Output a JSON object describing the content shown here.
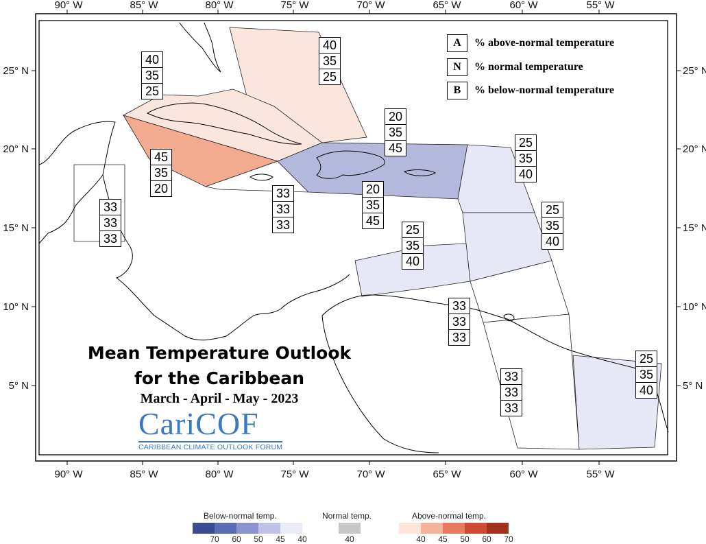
{
  "map": {
    "title_line1": "Mean Temperature Outlook",
    "title_line2": "for the Caribbean",
    "season": "March - April - May - 2023",
    "logo_word": "CariCOF",
    "logo_subtitle": "CARIBBEAN CLIMATE OUTLOOK FORUM",
    "lon_ticks": [
      "90° W",
      "85° W",
      "80° W",
      "75° W",
      "70° W",
      "65° W",
      "60° W",
      "55° W"
    ],
    "lat_ticks": [
      "25° N",
      "20° N",
      "15° N",
      "10° N",
      "5° N"
    ],
    "key": [
      {
        "letter": "A",
        "text": "% above-normal temperature"
      },
      {
        "letter": "N",
        "text": "% normal temperature"
      },
      {
        "letter": "B",
        "text": "% below-normal temperature"
      }
    ],
    "regions": [
      {
        "id": "bahamas",
        "category": "above-40",
        "values": [
          "40",
          "35",
          "25"
        ]
      },
      {
        "id": "cuba",
        "category": "above-40",
        "values": [
          "40",
          "35",
          "25"
        ]
      },
      {
        "id": "cayman",
        "category": "above-45",
        "values": [
          "45",
          "35",
          "20"
        ]
      },
      {
        "id": "jamaica",
        "category": "normal",
        "values": [
          "33",
          "33",
          "33"
        ]
      },
      {
        "id": "belize",
        "category": "normal",
        "values": [
          "33",
          "33",
          "33"
        ]
      },
      {
        "id": "hispaniola-pr",
        "category": "below-45",
        "values": [
          "20",
          "35",
          "45"
        ]
      },
      {
        "id": "hispaniola-pr-label2",
        "category": "below-45",
        "values": [
          "20",
          "35",
          "45"
        ]
      },
      {
        "id": "leeward",
        "category": "below-40",
        "values": [
          "25",
          "35",
          "40"
        ]
      },
      {
        "id": "windward",
        "category": "below-40",
        "values": [
          "25",
          "35",
          "40"
        ]
      },
      {
        "id": "abc-islands",
        "category": "below-40",
        "values": [
          "25",
          "35",
          "40"
        ]
      },
      {
        "id": "trinidad",
        "category": "normal",
        "values": [
          "33",
          "33",
          "33"
        ]
      },
      {
        "id": "guyana",
        "category": "normal",
        "values": [
          "33",
          "33",
          "33"
        ]
      },
      {
        "id": "suriname-guiana",
        "category": "below-40",
        "values": [
          "25",
          "35",
          "40"
        ]
      }
    ],
    "colors": {
      "above-40": "#fbe6dd",
      "above-45": "#f2ab8f",
      "below-45": "#b4b8dd",
      "below-40": "#e6e8f5",
      "normal": "#ffffff",
      "border": "#000000"
    }
  },
  "scale": {
    "below_title": "Below-normal temp.",
    "normal_title": "Normal temp.",
    "above_title": "Above-normal temp.",
    "below_colors": [
      "#3b4a93",
      "#5c6bb5",
      "#8d93cc",
      "#c0c3e5",
      "#e9ebf7"
    ],
    "below_values": [
      "70",
      "60",
      "50",
      "45",
      "40"
    ],
    "normal_color": "#c8c8c8",
    "normal_values": [
      "40"
    ],
    "above_colors": [
      "#fce4d8",
      "#f4b49a",
      "#e77b62",
      "#cf4a35",
      "#a3301f"
    ],
    "above_values": [
      "40",
      "45",
      "50",
      "60",
      "70"
    ]
  }
}
